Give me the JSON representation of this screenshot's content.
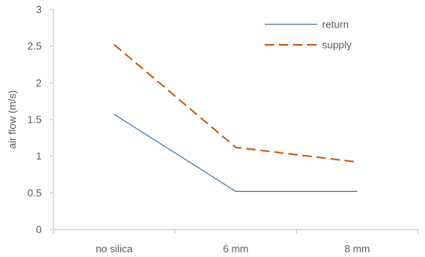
{
  "chart_data": {
    "type": "line",
    "categories": [
      "no silica",
      "6 mm",
      "8 mm"
    ],
    "series": [
      {
        "name": "return",
        "values": [
          1.57,
          0.52,
          0.52
        ],
        "color": "#44729e",
        "dash": "solid"
      },
      {
        "name": "supply",
        "values": [
          2.52,
          1.12,
          0.92
        ],
        "color": "#c55a11",
        "dash": "dashed"
      }
    ],
    "ylabel": "air flow (m/s)",
    "ylim": [
      0,
      3
    ],
    "yticks": [
      "0",
      "0.5",
      "1",
      "1.5",
      "2",
      "2.5",
      "3"
    ],
    "grid": false,
    "legend": "top-right"
  }
}
